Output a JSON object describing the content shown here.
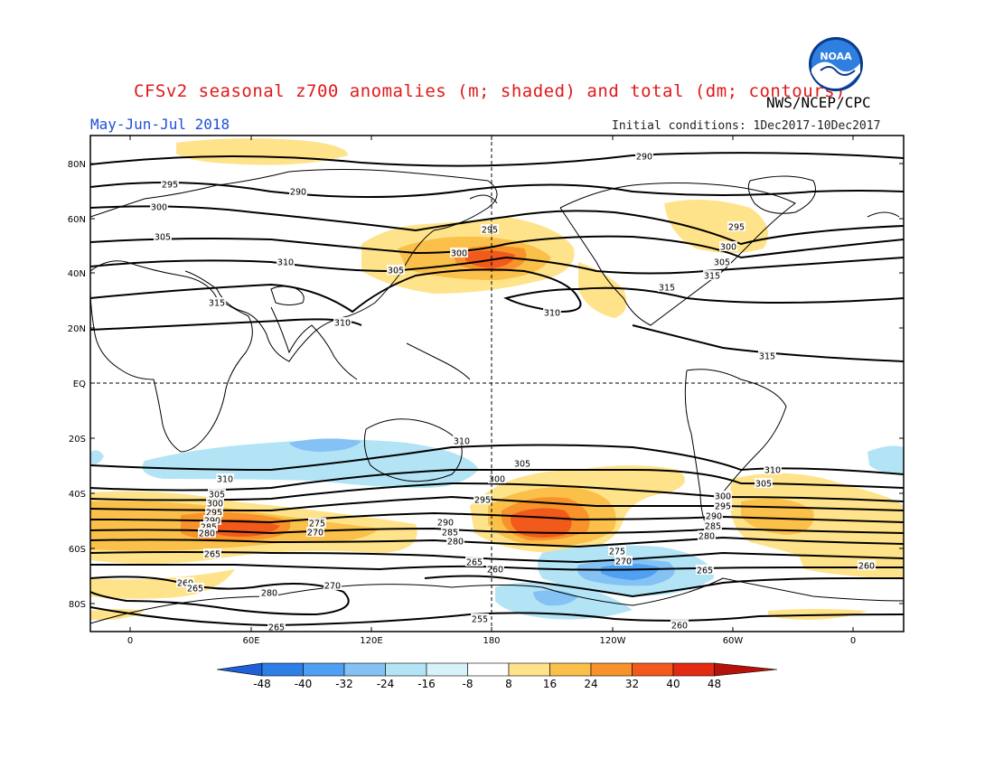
{
  "title": "CFSv2 seasonal z700 anomalies (m; shaded) and total (dm; contours)",
  "agency": "NWS/NCEP/CPC",
  "period": "May-Jun-Jul 2018",
  "initial_conditions": "Initial conditions: 1Dec2017-10Dec2017",
  "logo_icon": "noaa-logo-icon",
  "logo_text": "NOAA",
  "lat_labels": [
    "80N",
    "60N",
    "40N",
    "20N",
    "EQ",
    "20S",
    "40S",
    "60S",
    "80S"
  ],
  "lon_labels": [
    "0",
    "60E",
    "120E",
    "180",
    "120W",
    "60W",
    "0"
  ],
  "colorbar": {
    "ticks": [
      "-48",
      "-40",
      "-32",
      "-24",
      "-16",
      "-8",
      "8",
      "16",
      "24",
      "32",
      "40",
      "48"
    ],
    "colors": [
      "#1f5fd8",
      "#2e7ee8",
      "#4f9ff2",
      "#84c1f5",
      "#b3e4f6",
      "#ffffff",
      "#ffe38a",
      "#fbc04a",
      "#f7932a",
      "#f25a1c",
      "#e32a12",
      "#b5120c"
    ]
  },
  "contour_labels": [
    {
      "text": "290"
    },
    {
      "text": "295"
    },
    {
      "text": "290"
    },
    {
      "text": "300"
    },
    {
      "text": "305"
    },
    {
      "text": "310"
    },
    {
      "text": "315"
    },
    {
      "text": "310"
    },
    {
      "text": "295"
    },
    {
      "text": "300"
    },
    {
      "text": "305"
    },
    {
      "text": "315"
    },
    {
      "text": "295"
    },
    {
      "text": "300"
    },
    {
      "text": "305"
    },
    {
      "text": "310"
    },
    {
      "text": "315"
    },
    {
      "text": "315"
    },
    {
      "text": "310"
    },
    {
      "text": "305"
    },
    {
      "text": "300"
    },
    {
      "text": "295"
    },
    {
      "text": "290"
    },
    {
      "text": "285"
    },
    {
      "text": "280"
    },
    {
      "text": "275"
    },
    {
      "text": "270"
    },
    {
      "text": "265"
    },
    {
      "text": "260"
    },
    {
      "text": "310"
    },
    {
      "text": "305"
    },
    {
      "text": "300"
    },
    {
      "text": "295"
    },
    {
      "text": "290"
    },
    {
      "text": "285"
    },
    {
      "text": "280"
    },
    {
      "text": "275"
    },
    {
      "text": "270"
    },
    {
      "text": "265"
    },
    {
      "text": "260"
    },
    {
      "text": "310"
    },
    {
      "text": "305"
    },
    {
      "text": "300"
    },
    {
      "text": "295"
    },
    {
      "text": "290"
    },
    {
      "text": "285"
    },
    {
      "text": "280"
    },
    {
      "text": "265"
    },
    {
      "text": "260"
    },
    {
      "text": "265"
    },
    {
      "text": "260"
    },
    {
      "text": "280"
    },
    {
      "text": "270"
    },
    {
      "text": "265"
    },
    {
      "text": "255"
    },
    {
      "text": "260"
    }
  ]
}
